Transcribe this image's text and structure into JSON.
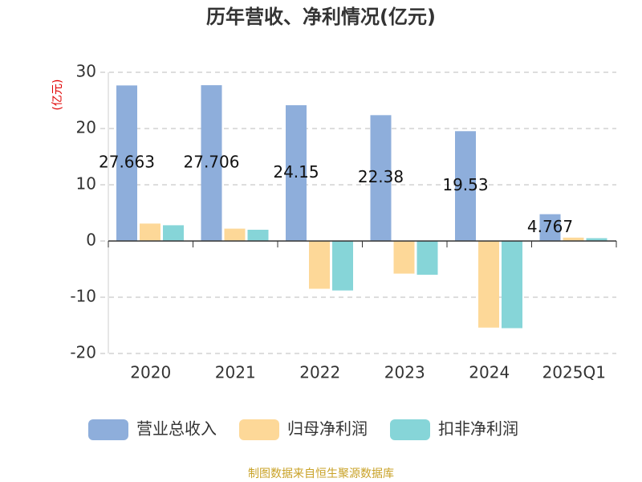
{
  "chart_data": {
    "type": "bar",
    "title": "历年营收、净利情况(亿元)",
    "y_label": "(亿元)",
    "categories": [
      "2020",
      "2021",
      "2022",
      "2023",
      "2024",
      "2025Q1"
    ],
    "series": [
      {
        "name": "营业总收入",
        "color": "#8eaedb",
        "data_labels": true,
        "values": [
          27.663,
          27.706,
          24.15,
          22.38,
          19.53,
          4.767
        ]
      },
      {
        "name": "归母净利润",
        "color": "#fdd898",
        "data_labels": false,
        "values": [
          3.1,
          2.2,
          -8.5,
          -5.8,
          -15.4,
          0.6
        ]
      },
      {
        "name": "扣非净利润",
        "color": "#86d5d8",
        "data_labels": false,
        "values": [
          2.8,
          2.0,
          -8.8,
          -6.0,
          -15.5,
          0.5
        ]
      }
    ],
    "ylim": [
      -20,
      30
    ],
    "yticks": [
      -20,
      -10,
      0,
      10,
      20,
      30
    ],
    "grid": true,
    "legend": "bottom",
    "source": "制图数据来自恒生聚源数据库"
  }
}
